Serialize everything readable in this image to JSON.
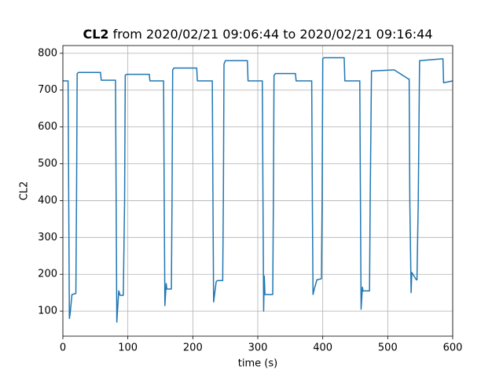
{
  "chart_data": {
    "type": "line",
    "title_bold": "CL2",
    "title": "from 2020/02/21 09:06:44 to 2020/02/21 09:16:44",
    "x_label": "time (s)",
    "y_label": "CL2",
    "xlim": [
      0,
      600
    ],
    "ylim": [
      32,
      821
    ],
    "xticks": [
      0,
      100,
      200,
      300,
      400,
      500,
      600
    ],
    "yticks": [
      100,
      200,
      300,
      400,
      500,
      600,
      700,
      800
    ],
    "grid": true,
    "x": [
      0,
      8,
      9,
      10,
      11,
      14,
      20,
      21,
      22,
      24,
      58,
      59,
      81,
      82,
      83,
      86,
      88,
      93,
      95,
      96,
      98,
      133,
      134,
      155,
      156,
      157,
      159,
      160,
      167,
      168,
      169,
      171,
      206,
      207,
      230,
      231,
      232,
      236,
      238,
      246,
      247,
      248,
      250,
      284,
      285,
      307,
      308,
      309,
      310,
      311,
      323,
      324,
      325,
      327,
      358,
      359,
      383,
      384,
      385,
      387,
      391,
      398,
      399,
      400,
      402,
      433,
      434,
      457,
      458,
      459,
      461,
      462,
      472,
      473,
      475,
      509,
      510,
      532,
      533,
      534,
      536,
      537,
      544,
      545,
      547,
      549,
      584,
      585,
      586,
      600
    ],
    "series": [
      {
        "name": "CL2",
        "color": "#1f77b4",
        "values": [
          725,
          725,
          400,
          80,
          90,
          145,
          148,
          400,
          745,
          748,
          748,
          727,
          727,
          400,
          70,
          155,
          143,
          143,
          400,
          740,
          743,
          743,
          725,
          725,
          400,
          115,
          175,
          160,
          160,
          400,
          755,
          760,
          760,
          725,
          725,
          400,
          125,
          180,
          183,
          183,
          400,
          770,
          780,
          780,
          725,
          725,
          400,
          100,
          195,
          145,
          145,
          400,
          740,
          745,
          745,
          725,
          725,
          400,
          145,
          160,
          185,
          188,
          400,
          785,
          788,
          788,
          725,
          725,
          400,
          105,
          165,
          155,
          155,
          400,
          752,
          755,
          755,
          730,
          730,
          400,
          150,
          205,
          185,
          185,
          400,
          780,
          785,
          785,
          720,
          725
        ]
      }
    ]
  }
}
